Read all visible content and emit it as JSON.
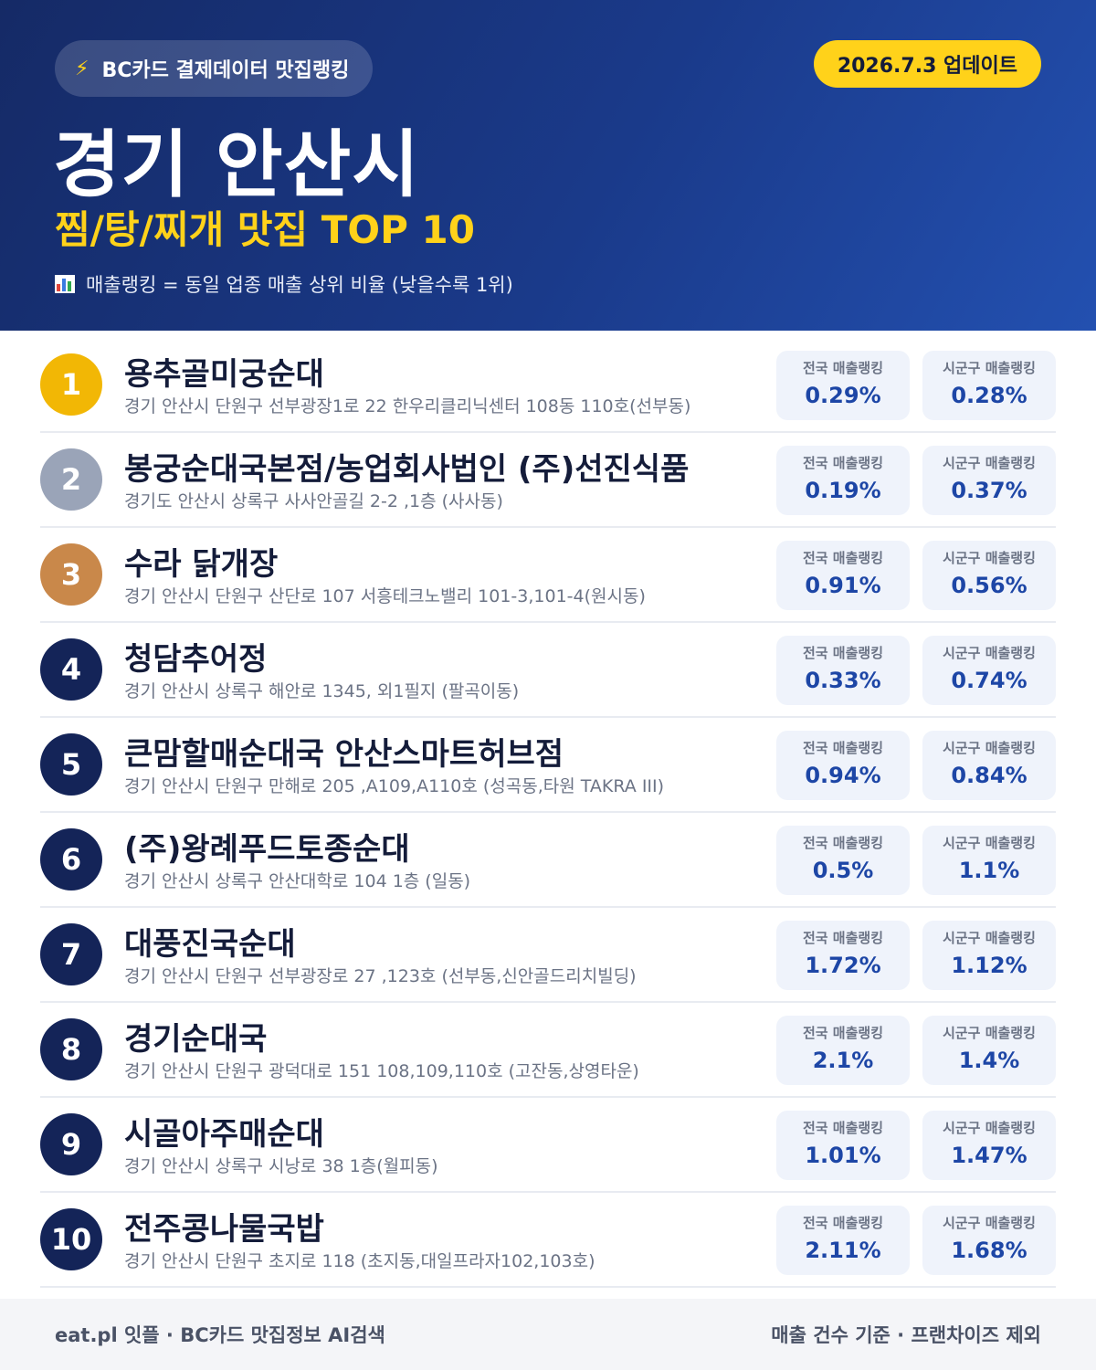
{
  "header": {
    "source_badge": "BC카드 결제데이터 맛집랭킹",
    "update_badge": "2026.7.3 업데이트",
    "city": "경기 안산시",
    "subtitle": "찜/탕/찌개 맛집 TOP 10",
    "note": "매출랭킹 = 동일 업종 매출 상위 비율 (낮을수록 1위)",
    "bolt_icon": "lightning-icon",
    "chart_icon": "bar-chart-icon"
  },
  "labels": {
    "national": "전국 매출랭킹",
    "local": "시군구 매출랭킹"
  },
  "restaurants": [
    {
      "rank": "1",
      "name": "용추골미궁순대",
      "address": "경기 안산시 단원구 선부광장1로 22 한우리클리닉센터 108동 110호(선부동)",
      "national": "0.29%",
      "local": "0.28%"
    },
    {
      "rank": "2",
      "name": "봉궁순대국본점/농업회사법인 (주)선진식품",
      "address": "경기도 안산시 상록구 사사안골길 2-2 ,1층 (사사동)",
      "national": "0.19%",
      "local": "0.37%"
    },
    {
      "rank": "3",
      "name": "수라 닭개장",
      "address": "경기 안산시 단원구 산단로 107 서흥테크노밸리 101-3,101-4(원시동)",
      "national": "0.91%",
      "local": "0.56%"
    },
    {
      "rank": "4",
      "name": "청담추어정",
      "address": "경기 안산시 상록구 해안로 1345, 외1필지 (팔곡이동)",
      "national": "0.33%",
      "local": "0.74%"
    },
    {
      "rank": "5",
      "name": "큰맘할매순대국 안산스마트허브점",
      "address": "경기 안산시 단원구 만해로 205 ,A109,A110호 (성곡동,타원 TAKRA III)",
      "national": "0.94%",
      "local": "0.84%"
    },
    {
      "rank": "6",
      "name": "(주)왕례푸드토종순대",
      "address": "경기 안산시 상록구 안산대학로 104 1층 (일동)",
      "national": "0.5%",
      "local": "1.1%"
    },
    {
      "rank": "7",
      "name": "대풍진국순대",
      "address": "경기 안산시 단원구 선부광장로 27 ,123호 (선부동,신안골드리치빌딩)",
      "national": "1.72%",
      "local": "1.12%"
    },
    {
      "rank": "8",
      "name": "경기순대국",
      "address": "경기 안산시 단원구 광덕대로 151 108,109,110호 (고잔동,상영타운)",
      "national": "2.1%",
      "local": "1.4%"
    },
    {
      "rank": "9",
      "name": "시골아주매순대",
      "address": "경기 안산시 상록구 시낭로 38 1층(월피동)",
      "national": "1.01%",
      "local": "1.47%"
    },
    {
      "rank": "10",
      "name": "전주콩나물국밥",
      "address": "경기 안산시 단원구 초지로 118 (초지동,대일프라자102,103호)",
      "national": "2.11%",
      "local": "1.68%"
    }
  ],
  "footer": {
    "left": "eat.pl 잇플 · BC카드 맛집정보 AI검색",
    "right": "매출 건수 기준 · 프랜차이즈 제외"
  }
}
